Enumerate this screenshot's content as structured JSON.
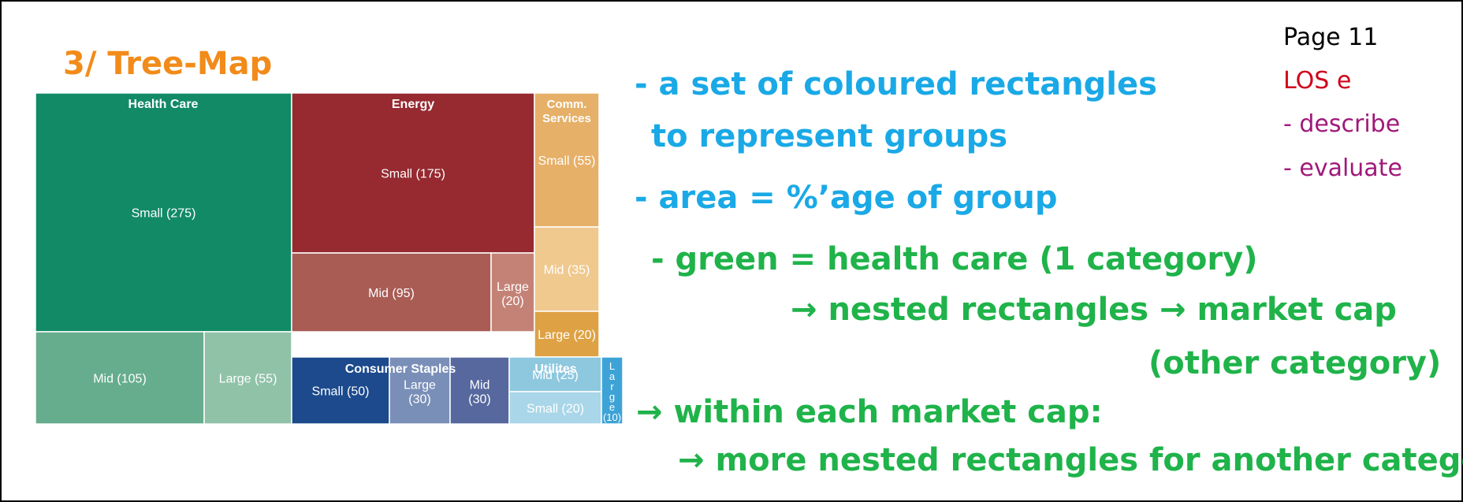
{
  "title": "3/ Tree-Map",
  "corner": {
    "page": "Page 11",
    "los": "LOS e",
    "describe": "- describe",
    "evaluate": "- evaluate"
  },
  "notes": {
    "line1": "- a set of coloured rectangles",
    "line2": "to represent groups",
    "line3": "- area = %’age of group",
    "line4": "- green = health care (1 category)",
    "line5": "→ nested rectangles → market cap",
    "line6": "(other category)",
    "line7": "→ within each market cap:",
    "line8": "→ more nested rectangles for another category"
  },
  "colors": {
    "blue_text": "#1aa9e6",
    "green_text": "#1fb34a",
    "orange_title": "#f28b1a",
    "page_text": "#000000",
    "los_text": "#d0021b",
    "purple_text": "#a0197a"
  },
  "chart_data": {
    "type": "treemap",
    "groups": [
      {
        "name": "Health Care",
        "color": "#128a66",
        "items": [
          {
            "label": "Small (275)",
            "size": "Small",
            "value": 275,
            "color": "#128a66"
          },
          {
            "label": "Mid (105)",
            "size": "Mid",
            "value": 105,
            "color": "#66ad8d"
          },
          {
            "label": "Large (55)",
            "size": "Large",
            "value": 55,
            "color": "#90c2a8"
          }
        ]
      },
      {
        "name": "Energy",
        "color": "#962a30",
        "items": [
          {
            "label": "Small (175)",
            "size": "Small",
            "value": 175,
            "color": "#962a30"
          },
          {
            "label": "Mid (95)",
            "size": "Mid",
            "value": 95,
            "color": "#a85c54"
          },
          {
            "label": "Large (20)",
            "size": "Large",
            "value": 20,
            "color": "#c48277"
          }
        ]
      },
      {
        "name": "Comm. Services",
        "color": "#e6b068",
        "items": [
          {
            "label": "Small (55)",
            "size": "Small",
            "value": 55,
            "color": "#e6b068"
          },
          {
            "label": "Mid (35)",
            "size": "Mid",
            "value": 35,
            "color": "#f0c98f"
          },
          {
            "label": "Large (20)",
            "size": "Large",
            "value": 20,
            "color": "#dea244"
          }
        ]
      },
      {
        "name": "Consumer Staples",
        "color": "#1c4a8c",
        "items": [
          {
            "label": "Small (50)",
            "size": "Small",
            "value": 50,
            "color": "#1c4a8c"
          },
          {
            "label": "Large (30)",
            "size": "Large",
            "value": 30,
            "color": "#7a8fb8"
          },
          {
            "label": "Mid (30)",
            "size": "Mid",
            "value": 30,
            "color": "#56689e"
          }
        ]
      },
      {
        "name": "Utilites",
        "color": "#8ec8df",
        "items": [
          {
            "label": "Mid (25)",
            "size": "Mid",
            "value": 25,
            "color": "#8ec8df"
          },
          {
            "label": "Small (20)",
            "size": "Small",
            "value": 20,
            "color": "#a9d6e8"
          },
          {
            "label": "Large (10)",
            "size": "Large",
            "value": 10,
            "color": "#3da3d6"
          }
        ]
      }
    ]
  }
}
